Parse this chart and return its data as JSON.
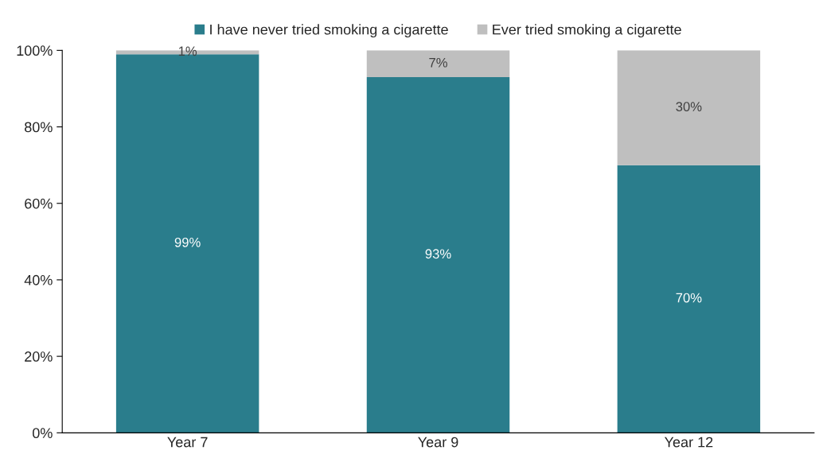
{
  "chart_data": {
    "type": "bar",
    "stacked": true,
    "categories": [
      "Year 7",
      "Year 9",
      "Year 12"
    ],
    "series": [
      {
        "name": "I have never tried smoking a cigarette",
        "color": "#2a7d8c",
        "values": [
          99,
          93,
          70
        ],
        "value_labels": [
          "99%",
          "93%",
          "70%"
        ]
      },
      {
        "name": "Ever tried smoking a cigarette",
        "color": "#bfbfbf",
        "values": [
          1,
          7,
          30
        ],
        "value_labels": [
          "1%",
          "7%",
          "30%"
        ]
      }
    ],
    "ylim": [
      0,
      100
    ],
    "yticks": [
      {
        "value": 0,
        "label": "0%"
      },
      {
        "value": 20,
        "label": "20%"
      },
      {
        "value": 40,
        "label": "40%"
      },
      {
        "value": 60,
        "label": "60%"
      },
      {
        "value": 80,
        "label": "80%"
      },
      {
        "value": 100,
        "label": "100%"
      }
    ],
    "grid": false,
    "legend": "top"
  }
}
